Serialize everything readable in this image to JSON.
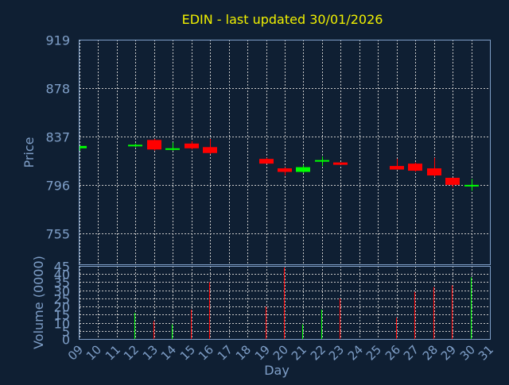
{
  "chart_data": [
    {
      "type": "candlestick",
      "title": "EDIN - last updated 30/01/2026",
      "ylabel": "Price",
      "ylim": [
        728,
        919
      ],
      "yticks": [
        "919",
        "878",
        "837",
        "796",
        "755"
      ],
      "grid": true,
      "colors": {
        "up": "#00ff00",
        "down": "#ff0000"
      },
      "candles": [
        {
          "day": 9,
          "open": 827,
          "high": 829,
          "low": 825,
          "close": 829
        },
        {
          "day": 12,
          "open": 829,
          "high": 831,
          "low": 828,
          "close": 830
        },
        {
          "day": 13,
          "open": 834,
          "high": 835,
          "low": 825,
          "close": 826
        },
        {
          "day": 14,
          "open": 826,
          "high": 832,
          "low": 825,
          "close": 827
        },
        {
          "day": 15,
          "open": 831,
          "high": 833,
          "low": 826,
          "close": 827
        },
        {
          "day": 16,
          "open": 828,
          "high": 835,
          "low": 822,
          "close": 823
        },
        {
          "day": 19,
          "open": 818,
          "high": 819,
          "low": 814,
          "close": 814
        },
        {
          "day": 20,
          "open": 810,
          "high": 811,
          "low": 804,
          "close": 807
        },
        {
          "day": 21,
          "open": 807,
          "high": 813,
          "low": 806,
          "close": 811
        },
        {
          "day": 22,
          "open": 816,
          "high": 820,
          "low": 812,
          "close": 817
        },
        {
          "day": 23,
          "open": 815,
          "high": 815,
          "low": 813,
          "close": 813
        },
        {
          "day": 26,
          "open": 812,
          "high": 818,
          "low": 809,
          "close": 809
        },
        {
          "day": 27,
          "open": 814,
          "high": 815,
          "low": 807,
          "close": 808
        },
        {
          "day": 28,
          "open": 810,
          "high": 819,
          "low": 803,
          "close": 804
        },
        {
          "day": 29,
          "open": 802,
          "high": 802,
          "low": 794,
          "close": 796
        },
        {
          "day": 30,
          "open": 796,
          "high": 801,
          "low": 791,
          "close": 796
        }
      ]
    },
    {
      "type": "bar",
      "xlabel": "Day",
      "ylabel": "Volume (0000)",
      "ylim": [
        0,
        45
      ],
      "yticks": [
        "45",
        "40",
        "35",
        "30",
        "25",
        "20",
        "15",
        "10",
        "5",
        "0"
      ],
      "xticks": [
        "09",
        "10",
        "11",
        "12",
        "13",
        "14",
        "15",
        "16",
        "17",
        "18",
        "19",
        "20",
        "21",
        "22",
        "23",
        "24",
        "25",
        "26",
        "27",
        "28",
        "29",
        "30",
        "31"
      ],
      "grid": true,
      "bars": [
        {
          "day": 12,
          "value": 16,
          "direction": "up"
        },
        {
          "day": 13,
          "value": 11,
          "direction": "down"
        },
        {
          "day": 14,
          "value": 9,
          "direction": "up"
        },
        {
          "day": 15,
          "value": 18,
          "direction": "down"
        },
        {
          "day": 16,
          "value": 35,
          "direction": "down"
        },
        {
          "day": 19,
          "value": 20,
          "direction": "down"
        },
        {
          "day": 20,
          "value": 44,
          "direction": "down"
        },
        {
          "day": 21,
          "value": 9,
          "direction": "up"
        },
        {
          "day": 22,
          "value": 18,
          "direction": "up"
        },
        {
          "day": 23,
          "value": 25,
          "direction": "down"
        },
        {
          "day": 26,
          "value": 13,
          "direction": "down"
        },
        {
          "day": 27,
          "value": 29,
          "direction": "down"
        },
        {
          "day": 28,
          "value": 32,
          "direction": "down"
        },
        {
          "day": 29,
          "value": 33,
          "direction": "down"
        },
        {
          "day": 30,
          "value": 38,
          "direction": "up"
        }
      ]
    }
  ]
}
